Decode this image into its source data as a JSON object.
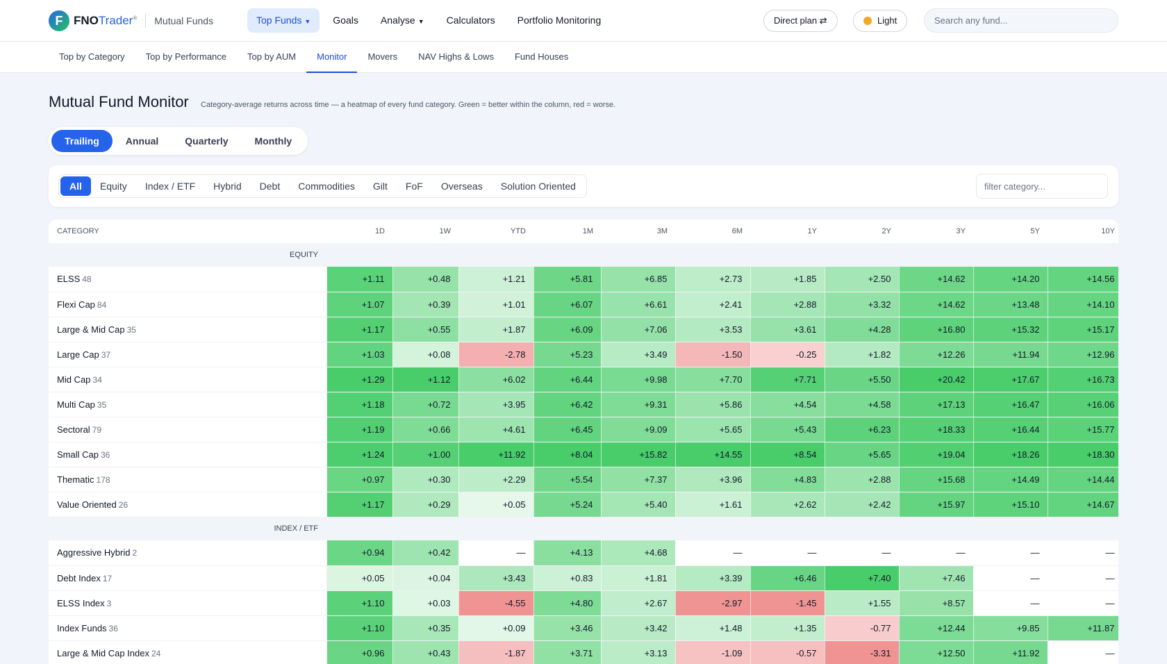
{
  "brand": {
    "logo_letter": "F",
    "name_part1": "FNO",
    "name_part2": "Trader",
    "reg": "®",
    "section": "Mutual Funds"
  },
  "nav": {
    "items": [
      {
        "label": "Top Funds",
        "active": true,
        "caret": true
      },
      {
        "label": "Goals",
        "active": false,
        "caret": false
      },
      {
        "label": "Analyse",
        "active": false,
        "caret": true
      },
      {
        "label": "Calculators",
        "active": false,
        "caret": false
      },
      {
        "label": "Portfolio Monitoring",
        "active": false,
        "caret": false
      }
    ],
    "plan_label": "Direct  plan ⇄",
    "theme_label": "Light",
    "search_placeholder": "Search any fund..."
  },
  "subnav": {
    "items": [
      {
        "label": "Top by Category",
        "active": false
      },
      {
        "label": "Top by Performance",
        "active": false
      },
      {
        "label": "Top by AUM",
        "active": false
      },
      {
        "label": "Monitor",
        "active": true
      },
      {
        "label": "Movers",
        "active": false
      },
      {
        "label": "NAV Highs & Lows",
        "active": false
      },
      {
        "label": "Fund Houses",
        "active": false
      }
    ]
  },
  "page": {
    "title": "Mutual Fund Monitor",
    "description": "Category-average returns across time — a heatmap of every fund category. Green = better within the column, red = worse."
  },
  "period_tabs": [
    {
      "label": "Trailing",
      "active": true
    },
    {
      "label": "Annual",
      "active": false
    },
    {
      "label": "Quarterly",
      "active": false
    },
    {
      "label": "Monthly",
      "active": false
    }
  ],
  "category_chips": [
    {
      "label": "All",
      "active": true
    },
    {
      "label": "Equity",
      "active": false
    },
    {
      "label": "Index / ETF",
      "active": false
    },
    {
      "label": "Hybrid",
      "active": false
    },
    {
      "label": "Debt",
      "active": false
    },
    {
      "label": "Commodities",
      "active": false
    },
    {
      "label": "Gilt",
      "active": false
    },
    {
      "label": "FoF",
      "active": false
    },
    {
      "label": "Overseas",
      "active": false
    },
    {
      "label": "Solution Oriented",
      "active": false
    }
  ],
  "filter_placeholder": "filter category...",
  "colors": {
    "accent": "#2563eb",
    "green_max": "#34c759",
    "red_max": "#f0a0a0"
  },
  "table": {
    "category_header": "CATEGORY",
    "columns": [
      "1D",
      "1W",
      "YTD",
      "1M",
      "3M",
      "6M",
      "1Y",
      "2Y",
      "3Y",
      "5Y",
      "10Y"
    ],
    "groups": [
      {
        "label": "EQUITY",
        "rows": [
          {
            "name": "ELSS",
            "count": "48",
            "values": [
              "+1.11",
              "+0.48",
              "+1.21",
              "+5.81",
              "+6.85",
              "+2.73",
              "+1.85",
              "+2.50",
              "+14.62",
              "+14.20",
              "+14.56"
            ]
          },
          {
            "name": "Flexi Cap",
            "count": "84",
            "values": [
              "+1.07",
              "+0.39",
              "+1.01",
              "+6.07",
              "+6.61",
              "+2.41",
              "+2.88",
              "+3.32",
              "+14.62",
              "+13.48",
              "+14.10"
            ]
          },
          {
            "name": "Large & Mid Cap",
            "count": "35",
            "values": [
              "+1.17",
              "+0.55",
              "+1.87",
              "+6.09",
              "+7.06",
              "+3.53",
              "+3.61",
              "+4.28",
              "+16.80",
              "+15.32",
              "+15.17"
            ]
          },
          {
            "name": "Large Cap",
            "count": "37",
            "values": [
              "+1.03",
              "+0.08",
              "-2.78",
              "+5.23",
              "+3.49",
              "-1.50",
              "-0.25",
              "+1.82",
              "+12.26",
              "+11.94",
              "+12.96"
            ]
          },
          {
            "name": "Mid Cap",
            "count": "34",
            "values": [
              "+1.29",
              "+1.12",
              "+6.02",
              "+6.44",
              "+9.98",
              "+7.70",
              "+7.71",
              "+5.50",
              "+20.42",
              "+17.67",
              "+16.73"
            ]
          },
          {
            "name": "Multi Cap",
            "count": "35",
            "values": [
              "+1.18",
              "+0.72",
              "+3.95",
              "+6.42",
              "+9.31",
              "+5.86",
              "+4.54",
              "+4.58",
              "+17.13",
              "+16.47",
              "+16.06"
            ]
          },
          {
            "name": "Sectoral",
            "count": "79",
            "values": [
              "+1.19",
              "+0.66",
              "+4.61",
              "+6.45",
              "+9.09",
              "+5.65",
              "+5.43",
              "+6.23",
              "+18.33",
              "+16.44",
              "+15.77"
            ]
          },
          {
            "name": "Small Cap",
            "count": "36",
            "values": [
              "+1.24",
              "+1.00",
              "+11.92",
              "+8.04",
              "+15.82",
              "+14.55",
              "+8.54",
              "+5.65",
              "+19.04",
              "+18.26",
              "+18.30"
            ]
          },
          {
            "name": "Thematic",
            "count": "178",
            "values": [
              "+0.97",
              "+0.30",
              "+2.29",
              "+5.54",
              "+7.37",
              "+3.96",
              "+4.83",
              "+2.88",
              "+15.68",
              "+14.49",
              "+14.44"
            ]
          },
          {
            "name": "Value Oriented",
            "count": "26",
            "values": [
              "+1.17",
              "+0.29",
              "+0.05",
              "+5.24",
              "+5.40",
              "+1.61",
              "+2.62",
              "+2.42",
              "+15.97",
              "+15.10",
              "+14.67"
            ]
          }
        ]
      },
      {
        "label": "INDEX / ETF",
        "rows": [
          {
            "name": "Aggressive Hybrid",
            "count": "2",
            "values": [
              "+0.94",
              "+0.42",
              "—",
              "+4.13",
              "+4.68",
              "—",
              "—",
              "—",
              "—",
              "—",
              "—"
            ]
          },
          {
            "name": "Debt Index",
            "count": "17",
            "values": [
              "+0.05",
              "+0.04",
              "+3.43",
              "+0.83",
              "+1.81",
              "+3.39",
              "+6.46",
              "+7.40",
              "+7.46",
              "—",
              "—"
            ]
          },
          {
            "name": "ELSS Index",
            "count": "3",
            "values": [
              "+1.10",
              "+0.03",
              "-4.55",
              "+4.80",
              "+2.67",
              "-2.97",
              "-1.45",
              "+1.55",
              "+8.57",
              "—",
              "—"
            ]
          },
          {
            "name": "Index Funds",
            "count": "36",
            "values": [
              "+1.10",
              "+0.35",
              "+0.09",
              "+3.46",
              "+3.42",
              "+1.48",
              "+1.35",
              "-0.77",
              "+12.44",
              "+9.85",
              "+11.87"
            ]
          },
          {
            "name": "Large & Mid Cap Index",
            "count": "24",
            "values": [
              "+0.96",
              "+0.43",
              "-1.87",
              "+3.71",
              "+3.13",
              "-1.09",
              "-0.57",
              "-3.31",
              "+12.50",
              "+11.92",
              "—"
            ]
          }
        ]
      }
    ]
  }
}
